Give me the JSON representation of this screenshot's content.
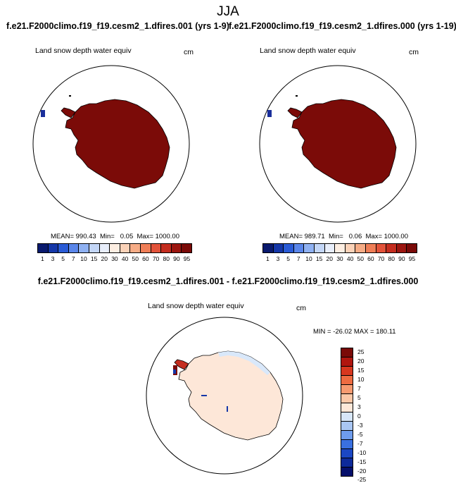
{
  "figure": {
    "title": "JJA",
    "diff_title": "f.e21.F2000climo.f19_f19.cesm2_1.dfires.001 - f.e21.F2000climo.f19_f19.cesm2_1.dfires.000"
  },
  "panels": [
    {
      "case_title": "f.e21.F2000climo.f19_f19.cesm2_1.dfires.001 (yrs 1-9)",
      "variable": "Land snow depth water equiv",
      "units": "cm",
      "stats": "MEAN= 990.43  Min=   0.05  Max= 1000.00"
    },
    {
      "case_title": "f.e21.F2000climo.f19_f19.cesm2_1.dfires.000 (yrs 1-19)",
      "variable": "Land snow depth water equiv",
      "units": "cm",
      "stats": "MEAN= 989.71  Min=   0.06  Max= 1000.00"
    }
  ],
  "diff_panel": {
    "variable": "Land snow depth water equiv",
    "units": "cm",
    "stats": "MIN = -26.02 MAX = 180.11"
  },
  "abs_colorbar": {
    "colors": [
      "#0a1a6e",
      "#1537a8",
      "#2a5bd6",
      "#5a86ea",
      "#8fb1f2",
      "#c3d6f7",
      "#e8eefb",
      "#fdeee2",
      "#fbd2b8",
      "#f6ac86",
      "#ef7e57",
      "#e2533a",
      "#c42d1f",
      "#9c1610",
      "#7a0a08"
    ],
    "ticks": [
      "1",
      "3",
      "5",
      "7",
      "10",
      "15",
      "20",
      "30",
      "40",
      "50",
      "60",
      "70",
      "80",
      "90",
      "95"
    ]
  },
  "diff_colorbar": {
    "colors": [
      "#7a0a08",
      "#b0160f",
      "#d7371f",
      "#ee6b41",
      "#f79a70",
      "#fbc7a7",
      "#fde7d8",
      "#d7e6f9",
      "#a9c6f3",
      "#6e9cec",
      "#3a70e0",
      "#1b47c4",
      "#0d2a9a",
      "#050f6b"
    ],
    "ticks": [
      "25",
      "20",
      "15",
      "10",
      "7",
      "5",
      "3",
      "0",
      "-3",
      "-5",
      "-7",
      "-10",
      "-15",
      "-20",
      "-25"
    ]
  },
  "colors": {
    "antarctica_fill": "#7b0b08",
    "diff_land": "#fde7d8",
    "diff_edge": "#d9e8fa",
    "ocean": "#ffffff"
  }
}
